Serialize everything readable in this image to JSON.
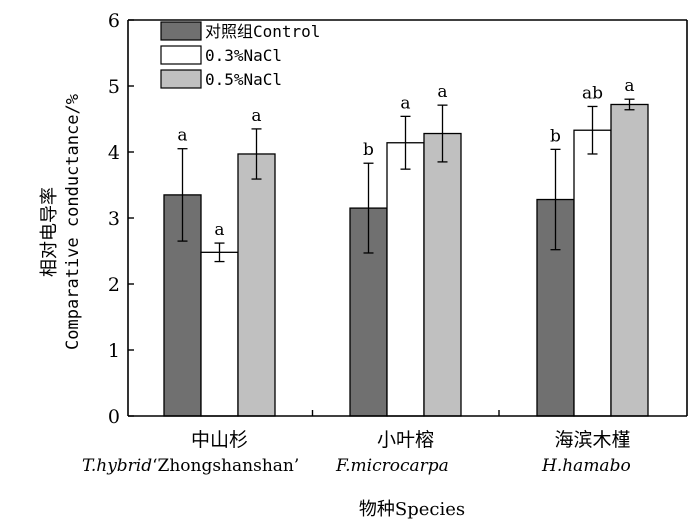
{
  "chart_data": {
    "type": "bar",
    "xlabel": "物种Species",
    "ylabel_cn": "相对电导率",
    "ylabel_en": "Comparative conductance/%",
    "ylim": [
      0,
      6
    ],
    "yticks": [
      "0",
      "1",
      "2",
      "3",
      "4",
      "5",
      "6"
    ],
    "categories": [
      {
        "cn": "中山杉",
        "latin_italic": "T.hybrid",
        "latin_normal": "‘Zhongshanshan’"
      },
      {
        "cn": "小叶榕",
        "latin_italic": "F.microcarpa",
        "latin_normal": ""
      },
      {
        "cn": "海滨木槿",
        "latin_italic": "H.hamabo",
        "latin_normal": ""
      }
    ],
    "series": [
      {
        "name": "对照组Control",
        "color": "#707070",
        "values": [
          3.35,
          3.15,
          3.28
        ],
        "errors": [
          0.7,
          0.68,
          0.76
        ],
        "labels": [
          "a",
          "b",
          "b"
        ]
      },
      {
        "name": "0.3%NaCl",
        "color": "#ffffff",
        "values": [
          2.48,
          4.14,
          4.33
        ],
        "errors": [
          0.14,
          0.4,
          0.36
        ],
        "labels": [
          "a",
          "a",
          "ab"
        ]
      },
      {
        "name": "0.5%NaCl",
        "color": "#c0c0c0",
        "values": [
          3.97,
          4.28,
          4.72
        ],
        "errors": [
          0.38,
          0.43,
          0.08
        ],
        "labels": [
          "a",
          "a",
          "a"
        ]
      }
    ],
    "legend_position": "top-left",
    "grid": false
  }
}
